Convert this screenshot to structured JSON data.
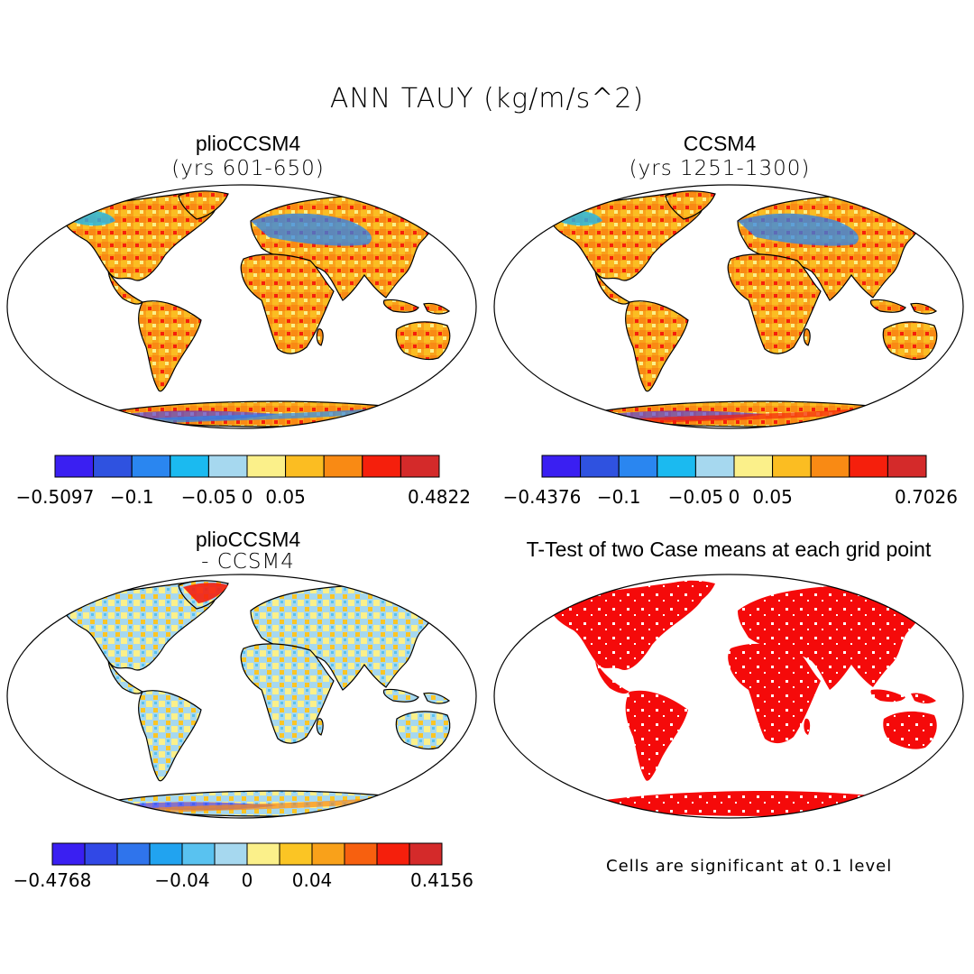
{
  "figure": {
    "title": "ANN TAUY (kg/m/s^2)"
  },
  "panels": [
    {
      "title": "plioCCSM4",
      "subtitle": "(yrs 601-650)"
    },
    {
      "title": "CCSM4",
      "subtitle": "(yrs 1251-1300)"
    },
    {
      "title": "plioCCSM4",
      "subtitle": "- CCSM4"
    },
    {
      "title": "T-Test of two Case means at each grid point",
      "note": "Cells are significant at 0.1 level"
    }
  ],
  "chart_data": [
    {
      "type": "heatmap",
      "title": "plioCCSM4 (yrs 601-650)",
      "colorbar": {
        "colors": [
          "#3a1ff2",
          "#2f52e0",
          "#2a86f0",
          "#1bbaf0",
          "#a6d8ef",
          "#fbf08a",
          "#fbbd22",
          "#f98a14",
          "#f51f0c",
          "#d42a2a"
        ],
        "labels": [
          "-0.5097",
          "-0.1",
          "-0.05",
          "0",
          "0.05",
          "0.4822"
        ],
        "label_boundaries": [
          0,
          2,
          4,
          5,
          6,
          10
        ]
      }
    },
    {
      "type": "heatmap",
      "title": "CCSM4 (yrs 1251-1300)",
      "colorbar": {
        "colors": [
          "#3a1ff2",
          "#2f52e0",
          "#2a86f0",
          "#1bbaf0",
          "#a6d8ef",
          "#fbf08a",
          "#fbbd22",
          "#f98a14",
          "#f51f0c",
          "#d42a2a"
        ],
        "labels": [
          "-0.4376",
          "-0.1",
          "-0.05",
          "0",
          "0.05",
          "0.7026"
        ],
        "label_boundaries": [
          0,
          2,
          4,
          5,
          6,
          10
        ]
      }
    },
    {
      "type": "heatmap",
      "title": "plioCCSM4 - CCSM4",
      "colorbar": {
        "colors": [
          "#3a1ff2",
          "#3148e6",
          "#2f74ec",
          "#21a3f0",
          "#59c2f0",
          "#a6d8ef",
          "#fbf08a",
          "#fbc524",
          "#f9a11a",
          "#f7600f",
          "#f51f0c",
          "#d42a2a"
        ],
        "labels": [
          "-0.4768",
          "-0.04",
          "0",
          "0.04",
          "0.4156"
        ],
        "label_boundaries": [
          0,
          4,
          6,
          8,
          12
        ]
      }
    },
    {
      "type": "heatmap",
      "title": "T-Test of two Case means at each grid point",
      "significant_color": "#f50a0a"
    }
  ]
}
